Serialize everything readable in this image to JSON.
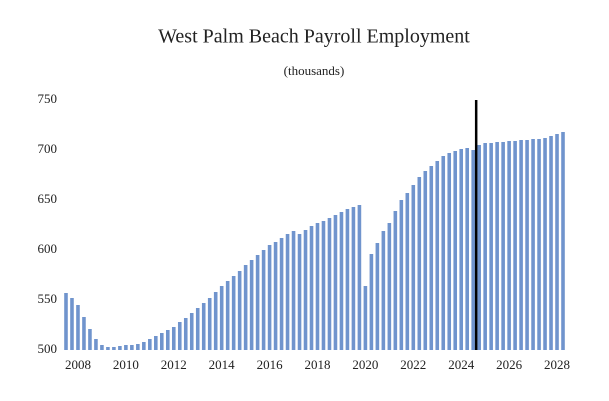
{
  "chart_data": {
    "type": "bar",
    "title": "West Palm Beach Payroll Employment",
    "subtitle": "(thousands)",
    "categories": [
      null,
      null,
      "2008",
      null,
      null,
      null,
      null,
      null,
      null,
      null,
      "2010",
      null,
      null,
      null,
      null,
      null,
      null,
      null,
      "2012",
      null,
      null,
      null,
      null,
      null,
      null,
      null,
      "2014",
      null,
      null,
      null,
      null,
      null,
      null,
      null,
      "2016",
      null,
      null,
      null,
      null,
      null,
      null,
      null,
      "2018",
      null,
      null,
      null,
      null,
      null,
      null,
      null,
      "2020",
      null,
      null,
      null,
      null,
      null,
      null,
      null,
      "2022",
      null,
      null,
      null,
      null,
      null,
      null,
      null,
      "2024",
      null,
      null,
      null,
      null,
      null,
      null,
      null,
      "2026",
      null,
      null,
      null,
      null,
      null,
      null,
      null,
      "2028",
      null
    ],
    "values": [
      557,
      552,
      545,
      533,
      521,
      511,
      505,
      503,
      503,
      504,
      505,
      505,
      506,
      508,
      511,
      514,
      517,
      520,
      523,
      528,
      532,
      537,
      542,
      547,
      552,
      558,
      564,
      569,
      574,
      579,
      585,
      590,
      595,
      600,
      605,
      608,
      612,
      616,
      619,
      616,
      620,
      624,
      627,
      629,
      632,
      635,
      638,
      641,
      643,
      645,
      564,
      596,
      607,
      619,
      627,
      639,
      650,
      657,
      665,
      673,
      679,
      684,
      689,
      694,
      697,
      699,
      701,
      702,
      700,
      705,
      707,
      707,
      708,
      708,
      709,
      709,
      710,
      710,
      711,
      711,
      712,
      714,
      716,
      718
    ],
    "color": "#7094cd",
    "ylim": [
      500,
      750
    ],
    "yticks": [
      500,
      550,
      600,
      650,
      700,
      750
    ],
    "grid": false,
    "vline_x": 68.5,
    "vline_color": "#000000"
  }
}
